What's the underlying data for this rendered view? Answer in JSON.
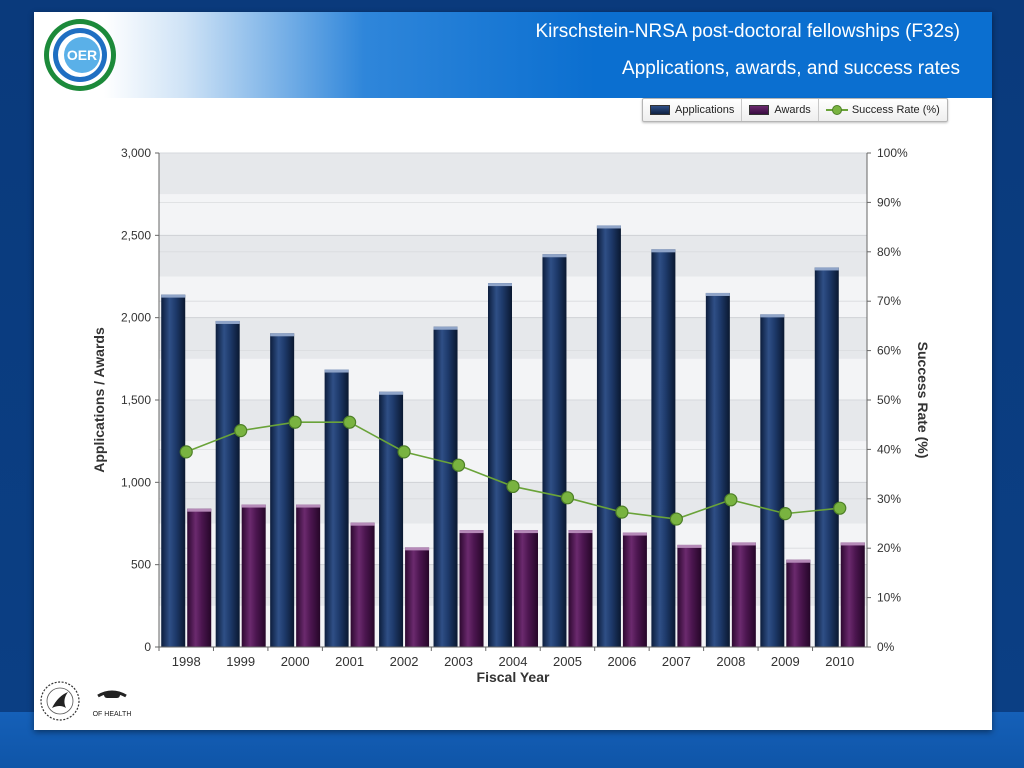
{
  "header": {
    "title_line1": "Kirschstein-NRSA post-doctoral fellowships (F32s)",
    "title_line2": "Applications, awards, and success rates",
    "logo_text": "OER"
  },
  "legend": {
    "applications": "Applications",
    "awards": "Awards",
    "success_rate": "Success Rate  (%)"
  },
  "colors": {
    "applications": "#1b3563",
    "awards": "#4e1650",
    "success_rate": "#6aa339",
    "header_blue": "#0b6fd0",
    "background": "#0b3f84"
  },
  "footer": {
    "nih_text": "OF HEALTH"
  },
  "chart_data": {
    "type": "bar",
    "title": "",
    "xlabel": "Fiscal Year",
    "ylabel": "Applications / Awards",
    "y2label": "Success Rate  (%)",
    "ylim": [
      0,
      3000
    ],
    "y2lim": [
      0,
      100
    ],
    "yticks": [
      "0",
      "500",
      "1,000",
      "1,500",
      "2,000",
      "2,500",
      "3,000"
    ],
    "y2ticks": [
      "0%",
      "10%",
      "20%",
      "30%",
      "40%",
      "50%",
      "60%",
      "70%",
      "80%",
      "90%",
      "100%"
    ],
    "grid": true,
    "legend_position": "top-right",
    "categories": [
      "1998",
      "1999",
      "2000",
      "2001",
      "2002",
      "2003",
      "2004",
      "2005",
      "2006",
      "2007",
      "2008",
      "2009",
      "2010"
    ],
    "series": [
      {
        "name": "Applications",
        "type": "bar",
        "axis": "left",
        "values": [
          2140,
          1980,
          1905,
          1685,
          1550,
          1945,
          2210,
          2385,
          2560,
          2415,
          2150,
          2020,
          2305
        ]
      },
      {
        "name": "Awards",
        "type": "bar",
        "axis": "left",
        "values": [
          840,
          865,
          865,
          755,
          605,
          710,
          710,
          710,
          695,
          620,
          635,
          530,
          635
        ]
      },
      {
        "name": "Success Rate  (%)",
        "type": "line",
        "axis": "right",
        "values": [
          39.5,
          43.8,
          45.5,
          45.5,
          39.5,
          36.8,
          32.5,
          30.2,
          27.3,
          25.9,
          29.8,
          27.0,
          28.1
        ]
      }
    ]
  }
}
